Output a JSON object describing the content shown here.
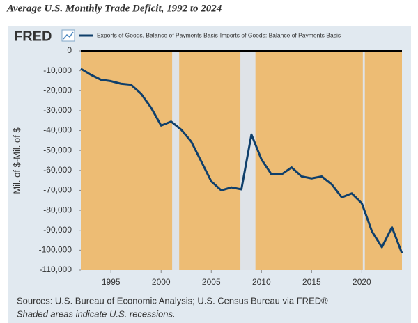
{
  "chart_data": {
    "type": "line",
    "title": "Average U.S. Monthly Trade Deficit,  1992 to 2024",
    "logo": "FRED",
    "ylabel": "Mil. of $-Mil. of $",
    "source": "Sources: U.S. Bureau of Economic Analysis; U.S. Census Bureau via FRED®",
    "note": "Shaded areas indicate U.S. recessions.",
    "x": [
      1992,
      1993,
      1994,
      1995,
      1996,
      1997,
      1998,
      1999,
      2000,
      2001,
      2002,
      2003,
      2004,
      2005,
      2006,
      2007,
      2008,
      2009,
      2010,
      2011,
      2012,
      2013,
      2014,
      2015,
      2016,
      2017,
      2018,
      2019,
      2020,
      2021,
      2022,
      2023,
      2024
    ],
    "series": [
      {
        "name": "Exports of Goods, Balance of Payments Basis-Imports of Goods: Balance of Payments Basis",
        "color": "#0f3f6b",
        "values": [
          -9000,
          -12000,
          -14500,
          -15200,
          -16500,
          -17000,
          -21500,
          -28500,
          -37500,
          -35500,
          -39500,
          -45500,
          -55500,
          -65500,
          -70000,
          -68500,
          -69500,
          -42000,
          -54500,
          -62000,
          -62000,
          -58500,
          -63000,
          -64000,
          -63000,
          -67000,
          -73500,
          -71500,
          -76500,
          -90500,
          -98500,
          -88500,
          -101500
        ]
      }
    ],
    "recessions": [
      [
        2001.1,
        2001.8
      ],
      [
        2007.9,
        2009.4
      ],
      [
        2020.1,
        2020.3
      ]
    ],
    "plot_color": "#edbc74",
    "recession_color": "#dfe3e8",
    "xlim": [
      1992,
      2024
    ],
    "xticks": [
      1995,
      2000,
      2005,
      2010,
      2015,
      2020
    ],
    "ylim": [
      -110000,
      0
    ],
    "yticks": [
      0,
      {
        "value": -10000,
        "label": "-10,000"
      },
      {
        "value": -20000,
        "label": "-20,000"
      },
      {
        "value": -30000,
        "label": "-30,000"
      },
      {
        "value": -40000,
        "label": "-40,000"
      },
      {
        "value": -50000,
        "label": "-50,000"
      },
      {
        "value": -60000,
        "label": "-60,000"
      },
      {
        "value": -70000,
        "label": "-70,000"
      },
      {
        "value": -80000,
        "label": "-80,000"
      },
      {
        "value": -90000,
        "label": "-90,000"
      },
      {
        "value": -100000,
        "label": "-100,000"
      },
      {
        "value": -110000,
        "label": "-110,000"
      }
    ]
  }
}
